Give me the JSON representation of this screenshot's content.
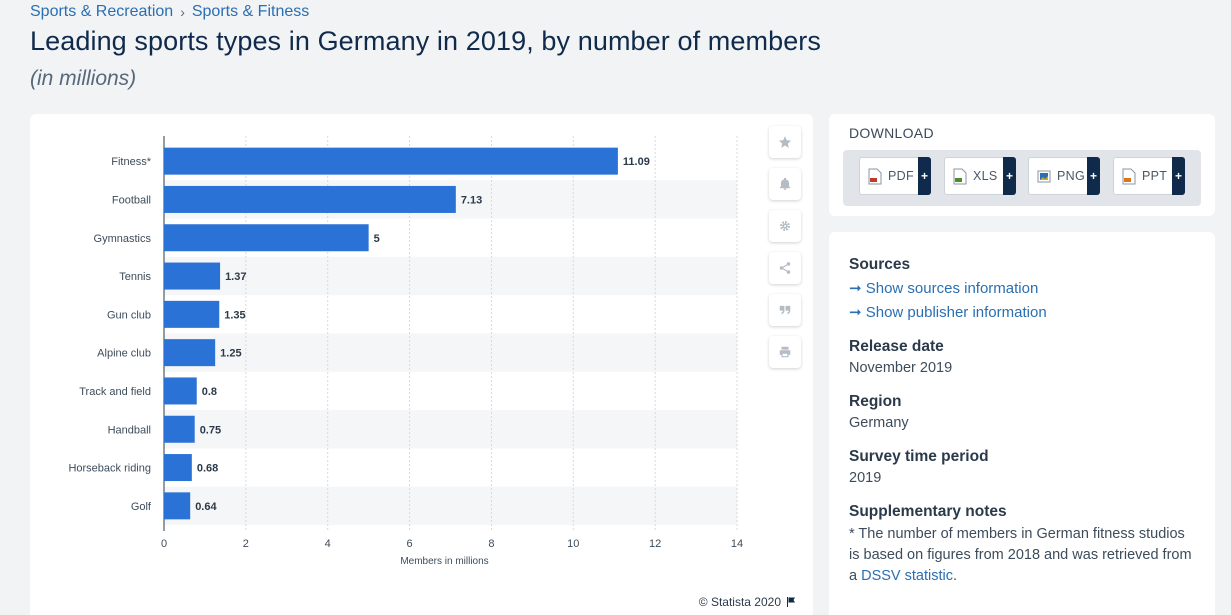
{
  "breadcrumb": {
    "item1": "Sports & Recreation",
    "separator": "›",
    "item2": "Sports & Fitness"
  },
  "header": {
    "title": "Leading sports types in Germany in 2019, by number of members",
    "subtitle": "(in millions)"
  },
  "chart_data": {
    "type": "bar",
    "orientation": "horizontal",
    "categories": [
      "Fitness*",
      "Football",
      "Gymnastics",
      "Tennis",
      "Gun club",
      "Alpine club",
      "Track and field",
      "Handball",
      "Horseback riding",
      "Golf"
    ],
    "values": [
      11.09,
      7.13,
      5,
      1.37,
      1.35,
      1.25,
      0.8,
      0.75,
      0.68,
      0.64
    ],
    "value_labels": [
      "11.09",
      "7.13",
      "5",
      "1.37",
      "1.35",
      "1.25",
      "0.8",
      "0.75",
      "0.68",
      "0.64"
    ],
    "xlabel": "Members in millions",
    "xlim": [
      0,
      14
    ],
    "x_ticks": [
      0,
      2,
      4,
      6,
      8,
      10,
      12,
      14
    ],
    "grid": true,
    "bar_color": "#2a72d6"
  },
  "credit": {
    "text": "© Statista 2020"
  },
  "toolbar": {
    "icons": [
      "star-icon",
      "bell-icon",
      "gear-icon",
      "share-icon",
      "quote-icon",
      "print-icon"
    ]
  },
  "download": {
    "title": "DOWNLOAD",
    "buttons": [
      {
        "label": "PDF",
        "plus": "+",
        "color": "#c0392b"
      },
      {
        "label": "XLS",
        "plus": "+",
        "color": "#4a8f2c"
      },
      {
        "label": "PNG",
        "plus": "+",
        "color": "#2a6fb3"
      },
      {
        "label": "PPT",
        "plus": "+",
        "color": "#d9761e"
      }
    ]
  },
  "info": {
    "sources_heading": "Sources",
    "show_sources": "➞ Show sources information",
    "show_publisher": "➞ Show publisher information",
    "release_heading": "Release date",
    "release_value": "November 2019",
    "region_heading": "Region",
    "region_value": "Germany",
    "survey_heading": "Survey time period",
    "survey_value": "2019",
    "notes_heading": "Supplementary notes",
    "notes_text": "* The number of members in German fitness studios is based on figures from 2018 and was retrieved from a ",
    "notes_link": "DSSV statistic",
    "notes_end": "."
  }
}
